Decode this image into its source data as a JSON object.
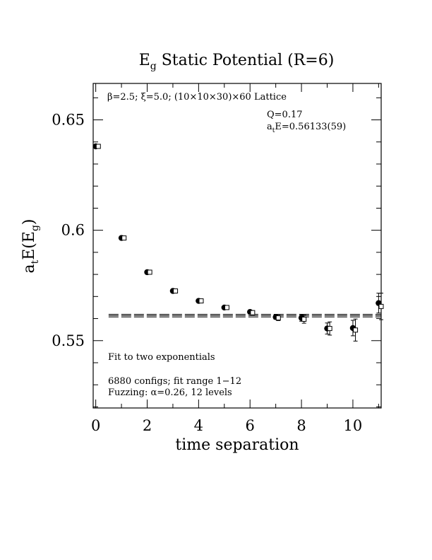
{
  "chart_data": {
    "type": "scatter",
    "title": {
      "main": "E",
      "sub": "g",
      "rest": " Static Potential (R=6)"
    },
    "xlabel": "time separation",
    "ylabel": {
      "a": "a",
      "t": "t",
      "mid": "E(E",
      "g": "g",
      "close": ")"
    },
    "xlim": [
      -0.1,
      11.1
    ],
    "ylim": [
      0.5195,
      0.6665
    ],
    "xticks": [
      0,
      2,
      4,
      6,
      8,
      10
    ],
    "yticks": [
      0.55,
      0.6,
      0.65
    ],
    "ytick_labels": [
      "0.55",
      "0.6",
      "0.65"
    ],
    "annotations": {
      "lattice": "β=2.5; ξ=5.0; (10×10×30)×60 Lattice",
      "q": "Q=0.17",
      "ate": {
        "a": "a",
        "t": "t",
        "rest": "E=0.56133(59)"
      },
      "fit": "Fit to two exponentials",
      "configs": "6880 configs; fit range 1−12",
      "fuzz": "Fuzzing: α=0.26, 12 levels"
    },
    "fit": {
      "value": 0.56133,
      "error": 0.00059,
      "x_range": [
        0.5,
        11.1
      ]
    },
    "series": [
      {
        "marker": "filled-circle",
        "x": [
          0,
          1,
          2,
          3,
          4,
          5,
          6,
          7,
          8,
          9,
          10,
          11
        ],
        "y": [
          0.638,
          0.5965,
          0.581,
          0.5725,
          0.568,
          0.565,
          0.563,
          0.5607,
          0.5603,
          0.5555,
          0.5557,
          0.567
        ],
        "err": [
          0.0003,
          0.0003,
          0.0003,
          0.0004,
          0.0005,
          0.0006,
          0.0008,
          0.001,
          0.0015,
          0.0025,
          0.0035,
          0.0045
        ]
      },
      {
        "marker": "open-square",
        "x": [
          0.1,
          1.1,
          2.1,
          3.1,
          4.1,
          5.1,
          6.1,
          7.1,
          8.1,
          9.1,
          10.1,
          11.1
        ],
        "y": [
          0.638,
          0.5965,
          0.581,
          0.5725,
          0.568,
          0.565,
          0.5627,
          0.5603,
          0.5597,
          0.5555,
          0.5548,
          0.5655
        ],
        "err": [
          0.0003,
          0.0003,
          0.0003,
          0.0004,
          0.0005,
          0.0006,
          0.0008,
          0.0012,
          0.0018,
          0.003,
          0.005,
          0.006
        ]
      }
    ]
  }
}
